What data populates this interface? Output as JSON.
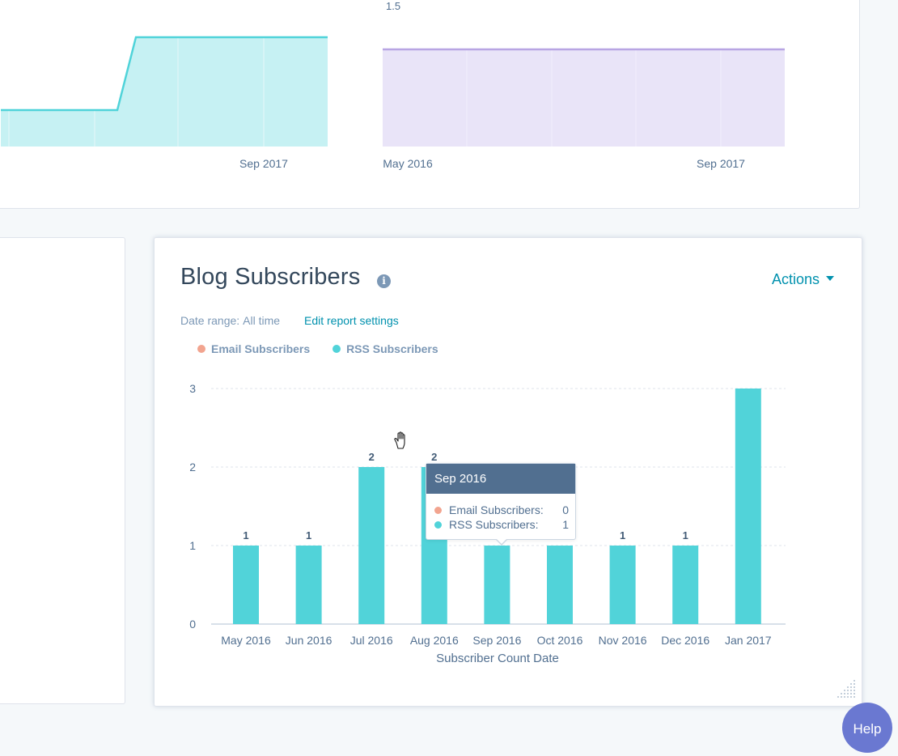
{
  "top_panel": {
    "left_chart": {
      "x_tick_label": "Sep 2017",
      "line_color": "#4fd3d9",
      "fill_color": "#c6f1f3"
    },
    "right_chart": {
      "y_tick_label": "1.5",
      "x_tick_labels": [
        "May 2016",
        "Sep 2017"
      ],
      "line_color": "#b8a5e3",
      "fill_color": "#e9e4f8"
    }
  },
  "report": {
    "title": "Blog Subscribers",
    "info_icon": "info-icon",
    "actions_label": "Actions",
    "date_range_label": "Date range:",
    "date_range_value": "All time",
    "edit_link": "Edit report settings",
    "legend": [
      {
        "name": "Email Subscribers",
        "color": "#f2a48f"
      },
      {
        "name": "RSS Subscribers",
        "color": "#51d3d9"
      }
    ]
  },
  "chart_data": {
    "type": "bar",
    "categories": [
      "May 2016",
      "Jun 2016",
      "Jul 2016",
      "Aug 2016",
      "Sep 2016",
      "Oct 2016",
      "Nov 2016",
      "Dec 2016",
      "Jan 2017"
    ],
    "series": [
      {
        "name": "Email Subscribers",
        "color": "#f2a48f",
        "values": [
          0,
          0,
          0,
          0,
          0,
          0,
          0,
          0,
          0
        ]
      },
      {
        "name": "RSS Subscribers",
        "color": "#51d3d9",
        "values": [
          1,
          1,
          2,
          2,
          1,
          1,
          1,
          1,
          3
        ]
      }
    ],
    "data_labels": [
      "1",
      "1",
      "2",
      "2",
      "",
      "",
      "1",
      "1",
      ""
    ],
    "title": "Blog Subscribers",
    "xlabel": "Subscriber Count Date",
    "ylabel": "",
    "yticks": [
      "0",
      "1",
      "2",
      "3"
    ],
    "ylim": [
      0,
      3
    ],
    "grid": true
  },
  "tooltip": {
    "title": "Sep 2016",
    "rows": [
      {
        "label": "Email Subscribers:",
        "value": "0",
        "color": "#f2a48f"
      },
      {
        "label": "RSS Subscribers:",
        "value": "1",
        "color": "#51d3d9"
      }
    ]
  },
  "help_button": "Help"
}
